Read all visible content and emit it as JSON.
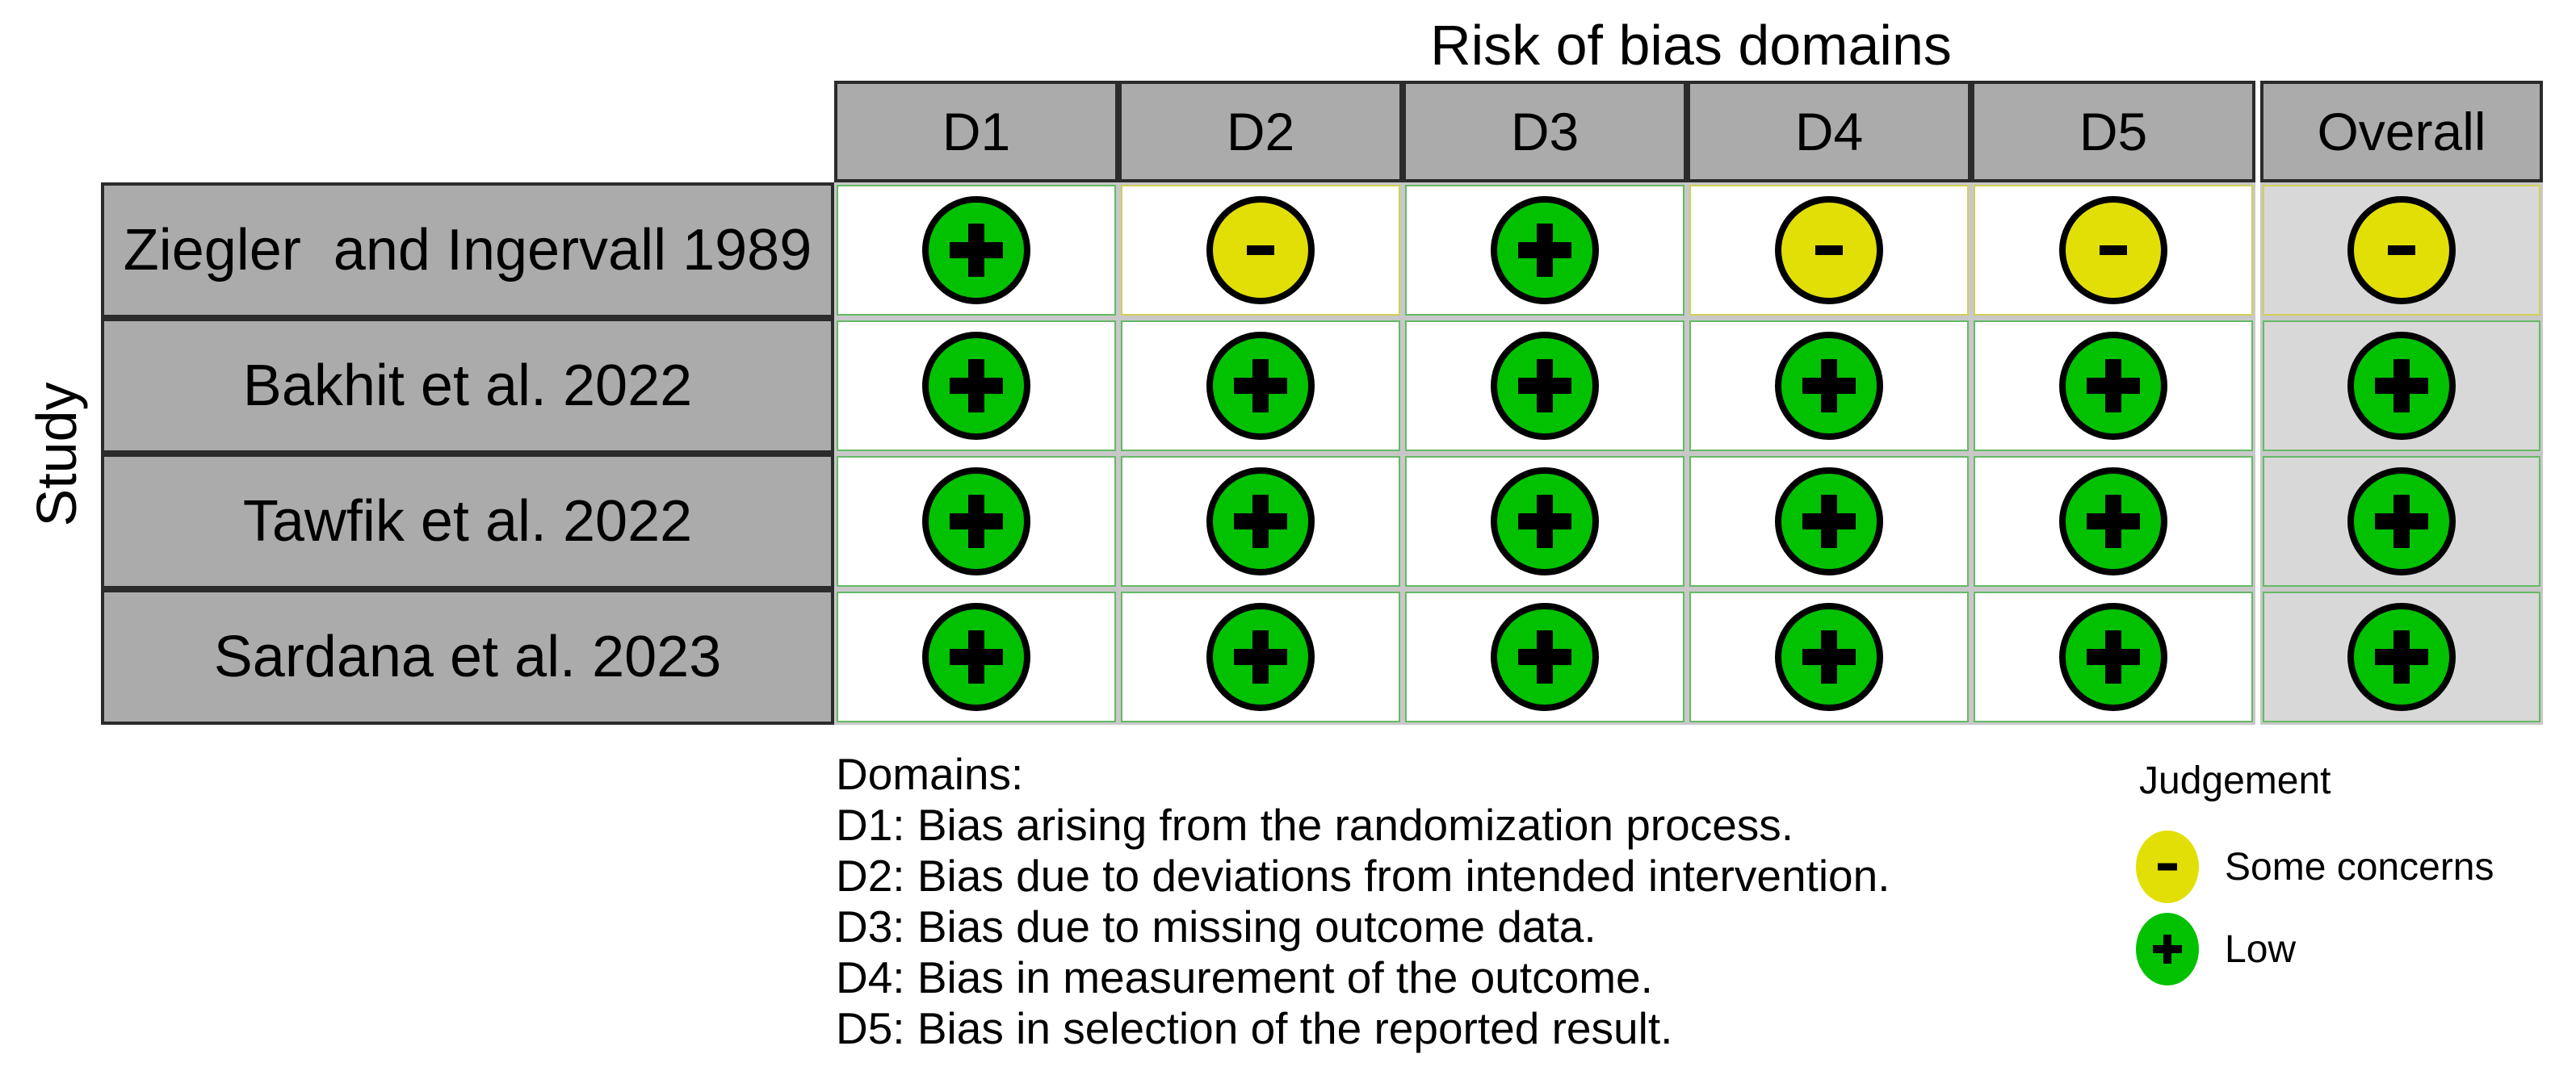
{
  "chart_data": {
    "type": "heatmap",
    "title": "Risk of bias domains",
    "y_axis_label": "Study",
    "columns": [
      "D1",
      "D2",
      "D3",
      "D4",
      "D5",
      "Overall"
    ],
    "rows": [
      "Ziegler  and Ingervall 1989",
      "Bakhit et al. 2022",
      "Tawfik et al. 2022",
      "Sardana et al. 2023"
    ],
    "values": [
      [
        "low",
        "some_concerns",
        "low",
        "some_concerns",
        "some_concerns",
        "some_concerns"
      ],
      [
        "low",
        "low",
        "low",
        "low",
        "low",
        "low"
      ],
      [
        "low",
        "low",
        "low",
        "low",
        "low",
        "low"
      ],
      [
        "low",
        "low",
        "low",
        "low",
        "low",
        "low"
      ]
    ],
    "legend": {
      "title": "Judgement",
      "entries": [
        {
          "judgement": "some_concerns",
          "label": "Some concerns",
          "symbol": "-",
          "color": "#E2DF07"
        },
        {
          "judgement": "low",
          "label": "Low",
          "symbol": "+",
          "color": "#02C100"
        }
      ]
    }
  },
  "judgements": {
    "low": {
      "label": "Low",
      "symbol": "+",
      "fill": "#02C100",
      "edge": "#66B966"
    },
    "some_concerns": {
      "label": "Some concerns",
      "symbol": "-",
      "fill": "#E2DF07",
      "edge": "#D2CF5A"
    }
  },
  "footnotes": {
    "heading": "Domains:",
    "lines": [
      "D1: Bias arising from the randomization process.",
      "D2: Bias due to deviations from intended intervention.",
      "D3: Bias due to missing outcome data.",
      "D4: Bias in measurement of the outcome.",
      "D5: Bias in selection of the reported result."
    ]
  },
  "colors": {
    "header_bg": "#ABABAB",
    "header_border": "#2B2B2B",
    "grid_line": "#C8C8C8",
    "overall_column_bg": "#D8D8D8",
    "circle_outline": "#000000",
    "background": "#FFFFFF"
  }
}
